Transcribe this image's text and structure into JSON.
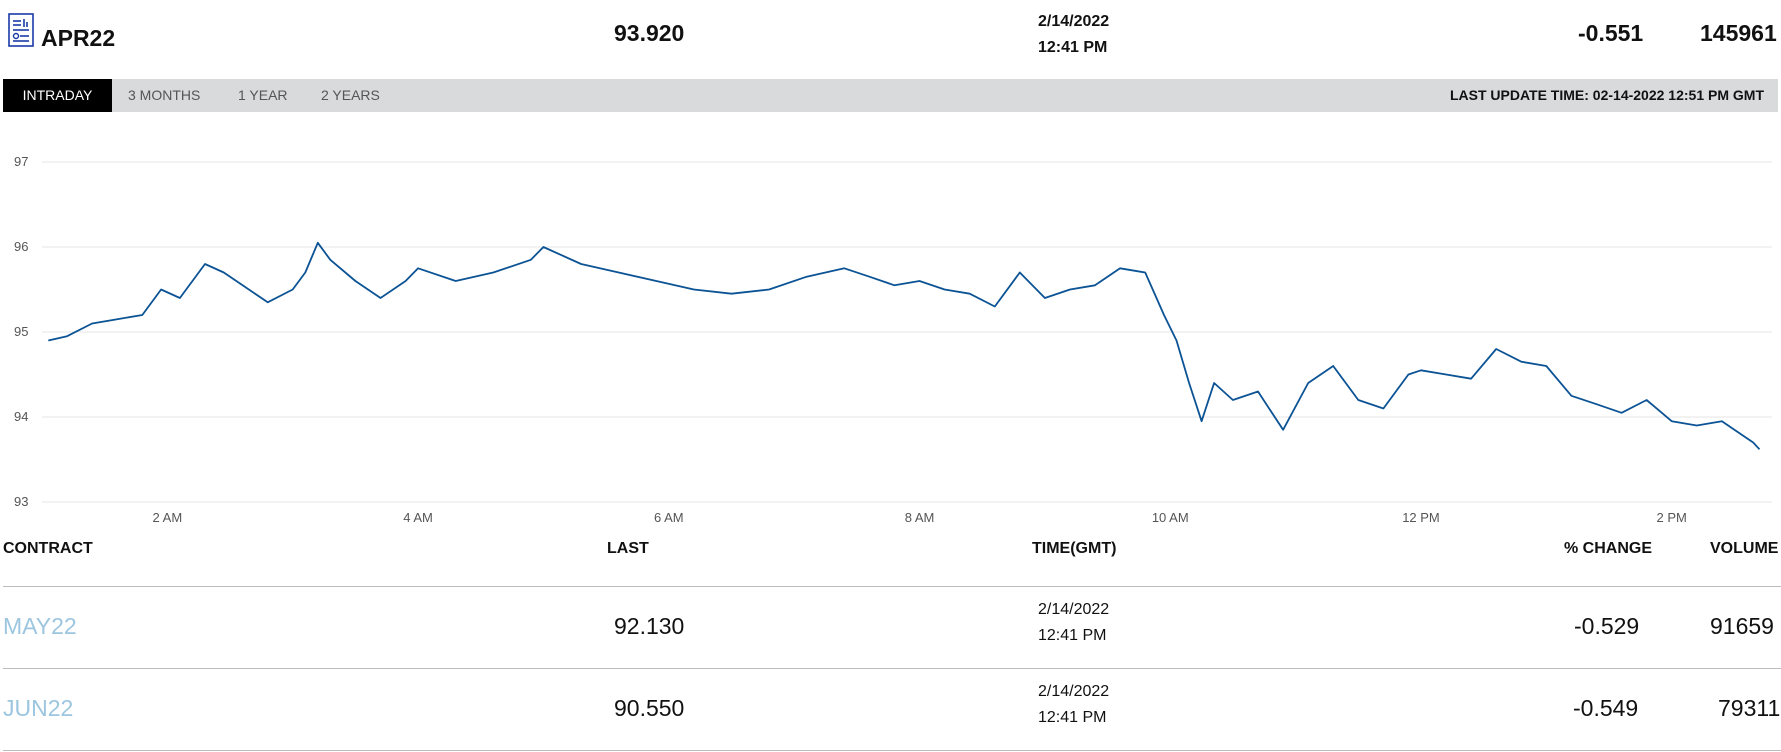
{
  "header": {
    "contract": "APR22",
    "last": "93.920",
    "date": "2/14/2022",
    "time": "12:41 PM",
    "change": "-0.551",
    "volume": "145961"
  },
  "tabs": [
    {
      "label": "INTRADAY",
      "active": true
    },
    {
      "label": "3 MONTHS",
      "active": false
    },
    {
      "label": "1 YEAR",
      "active": false
    },
    {
      "label": "2 YEARS",
      "active": false
    }
  ],
  "last_update": "LAST UPDATE TIME: 02-14-2022 12:51 PM GMT",
  "colors": {
    "line": "#0b5394",
    "link": "#9cc6e0",
    "tabbar": "#d9dadb"
  },
  "chart_data": {
    "type": "line",
    "ylim": [
      93,
      97
    ],
    "y_ticks": [
      "97",
      "96",
      "95",
      "94",
      "93"
    ],
    "x_ticks": [
      "2 AM",
      "4 AM",
      "6 AM",
      "8 AM",
      "10 AM",
      "12 PM",
      "2 PM"
    ],
    "xlim": [
      1.0,
      14.8
    ],
    "x": [
      1.05,
      1.2,
      1.4,
      1.6,
      1.8,
      1.95,
      2.1,
      2.3,
      2.45,
      2.6,
      2.8,
      3.0,
      3.1,
      3.2,
      3.3,
      3.5,
      3.7,
      3.9,
      4.0,
      4.3,
      4.6,
      4.9,
      5.0,
      5.3,
      5.6,
      5.9,
      6.2,
      6.5,
      6.8,
      7.1,
      7.4,
      7.6,
      7.8,
      8.0,
      8.2,
      8.4,
      8.6,
      8.8,
      9.0,
      9.2,
      9.4,
      9.6,
      9.8,
      9.95,
      10.05,
      10.15,
      10.25,
      10.35,
      10.5,
      10.7,
      10.9,
      11.1,
      11.2,
      11.3,
      11.5,
      11.7,
      11.9,
      12.0,
      12.2,
      12.4,
      12.6,
      12.8,
      13.0,
      13.2,
      13.4,
      13.6,
      13.8,
      14.0,
      14.2,
      14.4,
      14.6,
      14.65,
      14.7
    ],
    "y": [
      94.9,
      94.95,
      95.1,
      95.15,
      95.2,
      95.5,
      95.4,
      95.8,
      95.7,
      95.55,
      95.35,
      95.5,
      95.7,
      96.05,
      95.85,
      95.6,
      95.4,
      95.6,
      95.75,
      95.6,
      95.7,
      95.85,
      96.0,
      95.8,
      95.7,
      95.6,
      95.5,
      95.45,
      95.5,
      95.65,
      95.75,
      95.65,
      95.55,
      95.6,
      95.5,
      95.45,
      95.3,
      95.7,
      95.4,
      95.5,
      95.55,
      95.75,
      95.7,
      95.2,
      94.9,
      94.4,
      93.95,
      94.4,
      94.2,
      94.3,
      93.85,
      94.4,
      94.5,
      94.6,
      94.2,
      94.1,
      94.5,
      94.55,
      94.5,
      94.45,
      94.8,
      94.65,
      94.6,
      94.25,
      94.15,
      94.05,
      94.2,
      93.95,
      93.9,
      93.95,
      93.75,
      93.7,
      93.62
    ]
  },
  "table": {
    "headers": {
      "contract": "CONTRACT",
      "last": "LAST",
      "time": "TIME(GMT)",
      "change": "% CHANGE",
      "volume": "VOLUME"
    },
    "rows": [
      {
        "contract": "MAY22",
        "last": "92.130",
        "date": "2/14/2022",
        "time": "12:41 PM",
        "change": "-0.529",
        "volume": "91659"
      },
      {
        "contract": "JUN22",
        "last": "90.550",
        "date": "2/14/2022",
        "time": "12:41 PM",
        "change": "-0.549",
        "volume": "79311"
      }
    ]
  }
}
